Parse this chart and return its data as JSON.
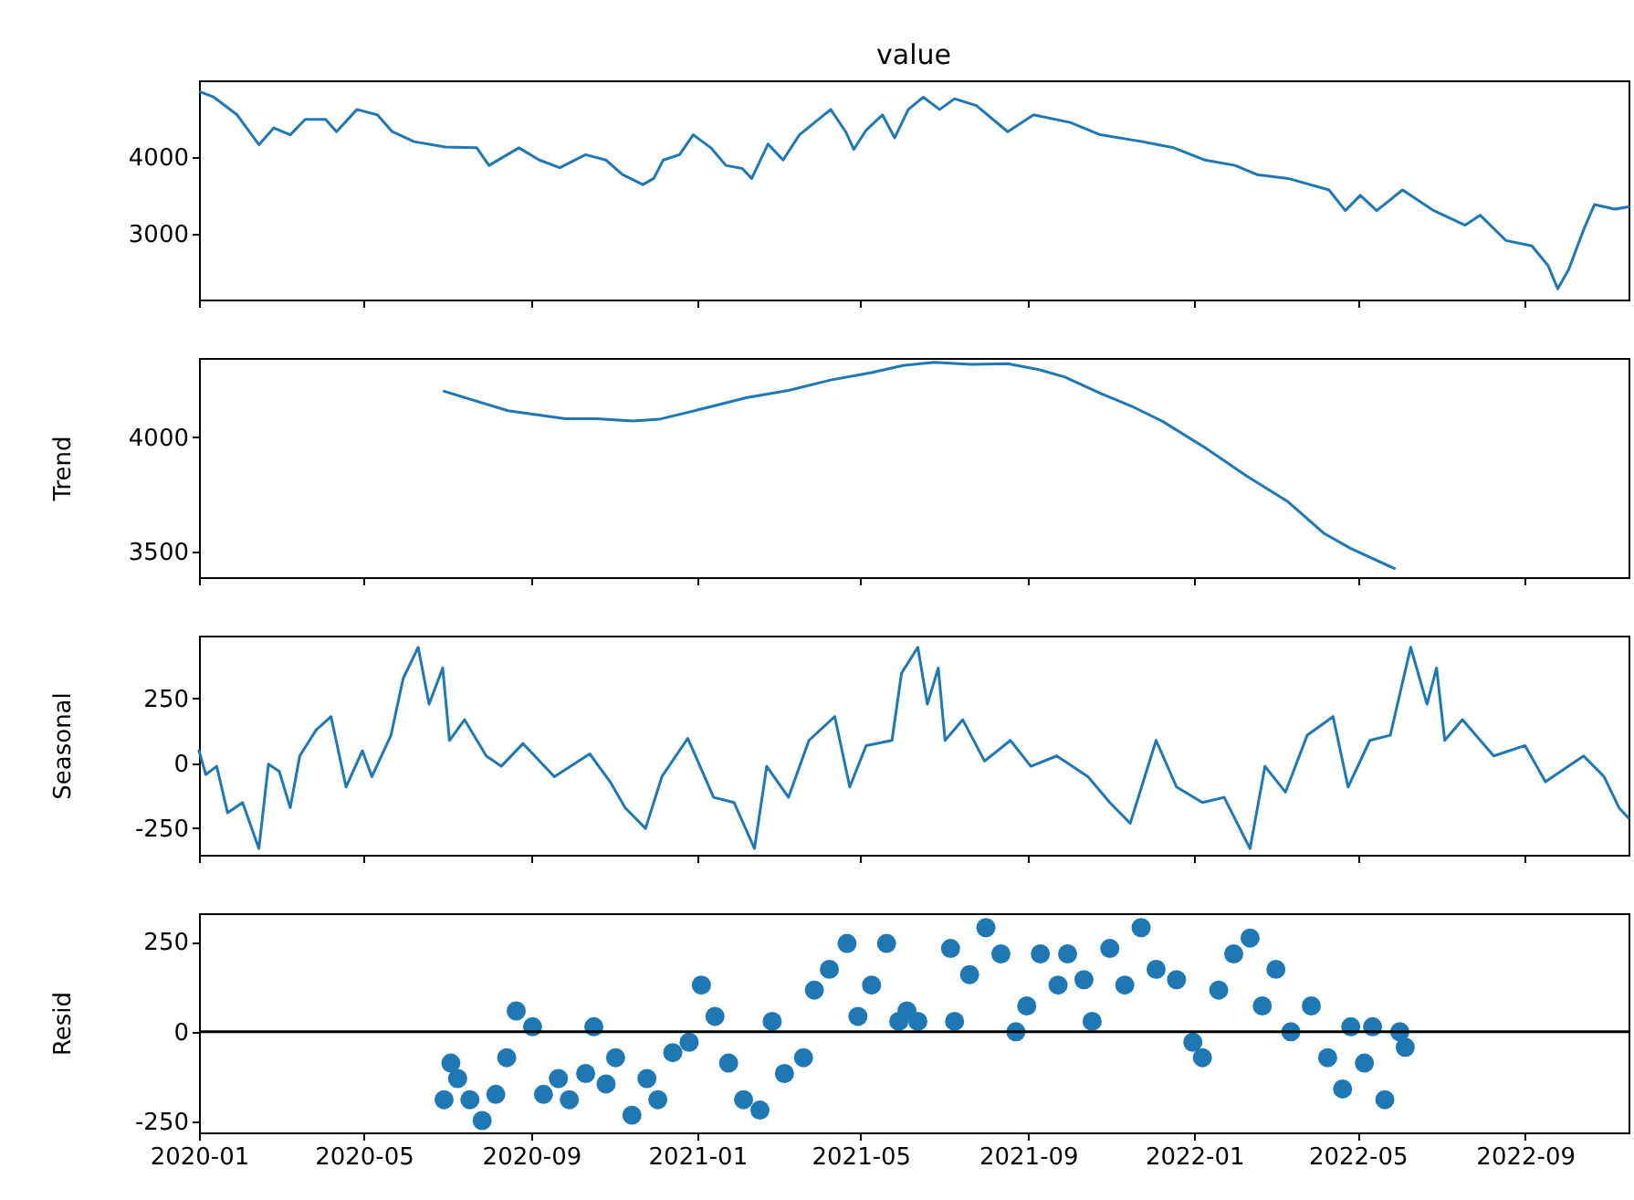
{
  "chart_data": [
    {
      "type": "line",
      "title": "value",
      "color": "#1f77b4",
      "tick_labels": "y",
      "xlim": [
        "2020-01-01",
        "2022-11-16"
      ],
      "xticks": [
        {
          "value": "2020-01-01",
          "label": null
        },
        {
          "value": "2020-05-01",
          "label": null
        },
        {
          "value": "2020-09-01",
          "label": null
        },
        {
          "value": "2021-01-01",
          "label": null
        },
        {
          "value": "2021-05-01",
          "label": null
        },
        {
          "value": "2021-09-01",
          "label": null
        },
        {
          "value": "2022-01-01",
          "label": null
        },
        {
          "value": "2022-05-01",
          "label": null
        },
        {
          "value": "2022-09-01",
          "label": null
        }
      ],
      "ylim": [
        2140,
        5000
      ],
      "yticks": [
        3000,
        4000
      ],
      "x": [
        "2020-01-02",
        "2020-01-12",
        "2020-01-29",
        "2020-02-14",
        "2020-02-25",
        "2020-03-08",
        "2020-03-19",
        "2020-04-03",
        "2020-04-11",
        "2020-04-26",
        "2020-05-11",
        "2020-05-22",
        "2020-06-07",
        "2020-06-30",
        "2020-07-23",
        "2020-08-01",
        "2020-08-23",
        "2020-09-07",
        "2020-09-22",
        "2020-10-11",
        "2020-10-26",
        "2020-11-07",
        "2020-11-22",
        "2020-11-30",
        "2020-12-07",
        "2020-12-19",
        "2020-12-29",
        "2021-01-11",
        "2021-01-22",
        "2021-02-03",
        "2021-02-10",
        "2021-02-22",
        "2021-03-05",
        "2021-03-17",
        "2021-04-09",
        "2021-04-20",
        "2021-04-26",
        "2021-05-05",
        "2021-05-17",
        "2021-05-26",
        "2021-06-05",
        "2021-06-16",
        "2021-06-28",
        "2021-07-09",
        "2021-07-25",
        "2021-08-17",
        "2021-09-05",
        "2021-10-02",
        "2021-10-24",
        "2021-11-24",
        "2021-12-17",
        "2022-01-09",
        "2022-01-31",
        "2022-02-16",
        "2022-03-11",
        "2022-04-10",
        "2022-04-22",
        "2022-05-03",
        "2022-05-15",
        "2022-06-03",
        "2022-06-26",
        "2022-07-19",
        "2022-07-30",
        "2022-08-18",
        "2022-09-06",
        "2022-09-18",
        "2022-09-25",
        "2022-10-03",
        "2022-10-14",
        "2022-10-22",
        "2022-11-06",
        "2022-11-16"
      ],
      "values": [
        4850,
        4780,
        4550,
        4160,
        4380,
        4290,
        4490,
        4490,
        4330,
        4620,
        4550,
        4330,
        4200,
        4130,
        4120,
        3890,
        4120,
        3960,
        3860,
        4030,
        3960,
        3770,
        3640,
        3720,
        3960,
        4030,
        4290,
        4120,
        3890,
        3850,
        3720,
        4170,
        3960,
        4290,
        4620,
        4330,
        4100,
        4350,
        4550,
        4250,
        4620,
        4780,
        4620,
        4760,
        4670,
        4330,
        4550,
        4450,
        4290,
        4200,
        4120,
        3960,
        3890,
        3770,
        3720,
        3570,
        3300,
        3500,
        3300,
        3570,
        3300,
        3110,
        3240,
        2910,
        2840,
        2580,
        2280,
        2530,
        3050,
        3380,
        3320,
        3350
      ]
    },
    {
      "type": "line",
      "ylabel": "Trend",
      "color": "#1f77b4",
      "tick_labels": "y",
      "xlim": [
        "2020-01-01",
        "2022-11-16"
      ],
      "xticks": [
        {
          "value": "2020-01-01",
          "label": null
        },
        {
          "value": "2020-05-01",
          "label": null
        },
        {
          "value": "2020-09-01",
          "label": null
        },
        {
          "value": "2021-01-01",
          "label": null
        },
        {
          "value": "2021-05-01",
          "label": null
        },
        {
          "value": "2021-09-01",
          "label": null
        },
        {
          "value": "2022-01-01",
          "label": null
        },
        {
          "value": "2022-05-01",
          "label": null
        },
        {
          "value": "2022-09-01",
          "label": null
        }
      ],
      "ylim": [
        3390,
        4345
      ],
      "yticks": [
        3500,
        4000
      ],
      "x": [
        "2020-06-29",
        "2020-08-15",
        "2020-09-26",
        "2020-10-19",
        "2020-11-15",
        "2020-12-04",
        "2021-01-07",
        "2021-02-06",
        "2021-03-09",
        "2021-04-09",
        "2021-05-09",
        "2021-06-01",
        "2021-06-24",
        "2021-07-21",
        "2021-08-17",
        "2021-09-09",
        "2021-09-28",
        "2021-10-24",
        "2021-11-16",
        "2021-12-09",
        "2022-01-09",
        "2022-02-08",
        "2022-03-11",
        "2022-04-06",
        "2022-04-26",
        "2022-05-28"
      ],
      "values": [
        4200,
        4115,
        4080,
        4080,
        4070,
        4078,
        4127,
        4172,
        4204,
        4249,
        4281,
        4312,
        4326,
        4317,
        4320,
        4294,
        4262,
        4191,
        4135,
        4068,
        3954,
        3833,
        3718,
        3582,
        3515,
        3428
      ]
    },
    {
      "type": "line",
      "ylabel": "Seasonal",
      "color": "#1f77b4",
      "tick_labels": "y",
      "xlim": [
        "2020-01-01",
        "2022-11-16"
      ],
      "xticks": [
        {
          "value": "2020-01-01",
          "label": null
        },
        {
          "value": "2020-05-01",
          "label": null
        },
        {
          "value": "2020-09-01",
          "label": null
        },
        {
          "value": "2021-01-01",
          "label": null
        },
        {
          "value": "2021-05-01",
          "label": null
        },
        {
          "value": "2021-09-01",
          "label": null
        },
        {
          "value": "2022-01-01",
          "label": null
        },
        {
          "value": "2022-05-01",
          "label": null
        },
        {
          "value": "2022-09-01",
          "label": null
        }
      ],
      "ylim": [
        -354,
        493
      ],
      "yticks": [
        -250,
        0,
        250
      ],
      "x": [
        "2020-01-01",
        "2020-01-06",
        "2020-01-14",
        "2020-01-22",
        "2020-02-02",
        "2020-02-14",
        "2020-02-21",
        "2020-02-29",
        "2020-03-08",
        "2020-03-15",
        "2020-03-27",
        "2020-04-07",
        "2020-04-18",
        "2020-04-30",
        "2020-05-07",
        "2020-05-21",
        "2020-05-30",
        "2020-06-10",
        "2020-06-18",
        "2020-06-28",
        "2020-07-03",
        "2020-07-14",
        "2020-07-30",
        "2020-08-10",
        "2020-08-26",
        "2020-09-18",
        "2020-10-14",
        "2020-10-29",
        "2020-11-09",
        "2020-11-24",
        "2020-12-06",
        "2020-12-25",
        "2021-01-13",
        "2021-01-28",
        "2021-02-12",
        "2021-02-21",
        "2021-03-09",
        "2021-03-24",
        "2021-04-12",
        "2021-04-23",
        "2021-05-05",
        "2021-05-24",
        "2021-05-31",
        "2021-06-12",
        "2021-06-19",
        "2021-06-27",
        "2021-07-02",
        "2021-07-15",
        "2021-07-31",
        "2021-08-19",
        "2021-09-03",
        "2021-09-22",
        "2021-10-15",
        "2021-10-31",
        "2021-11-15",
        "2021-12-04",
        "2021-12-19",
        "2022-01-07",
        "2022-01-23",
        "2022-02-11",
        "2022-02-22",
        "2022-03-09",
        "2022-03-25",
        "2022-04-13",
        "2022-04-24",
        "2022-05-10",
        "2022-05-25",
        "2022-06-09",
        "2022-06-21",
        "2022-06-28",
        "2022-07-04",
        "2022-07-17",
        "2022-08-09",
        "2022-09-01",
        "2022-09-16",
        "2022-10-14",
        "2022-10-29",
        "2022-11-09",
        "2022-11-16"
      ],
      "values": [
        48,
        -44,
        -12,
        -192,
        -152,
        -330,
        -4,
        -32,
        -172,
        28,
        128,
        180,
        -92,
        48,
        -52,
        108,
        328,
        448,
        228,
        368,
        88,
        168,
        28,
        -12,
        76,
        -52,
        36,
        -72,
        -172,
        -252,
        -52,
        96,
        -132,
        -152,
        -330,
        -12,
        -132,
        88,
        180,
        -92,
        68,
        88,
        348,
        448,
        228,
        368,
        88,
        168,
        8,
        88,
        -12,
        28,
        -52,
        -152,
        -232,
        88,
        -92,
        -152,
        -132,
        -330,
        -12,
        -112,
        108,
        180,
        -92,
        88,
        108,
        448,
        228,
        368,
        88,
        168,
        28,
        68,
        -72,
        28,
        -52,
        -172,
        -212
      ]
    },
    {
      "type": "scatter",
      "ylabel": "Resid",
      "color": "#1f77b4",
      "marker": "circle",
      "xlim": [
        "2020-01-01",
        "2022-11-16"
      ],
      "xticks": [
        {
          "value": "2020-01-01",
          "label": "2020-01"
        },
        {
          "value": "2020-05-01",
          "label": "2020-05"
        },
        {
          "value": "2020-09-01",
          "label": "2020-09"
        },
        {
          "value": "2021-01-01",
          "label": "2021-01"
        },
        {
          "value": "2021-05-01",
          "label": "2021-05"
        },
        {
          "value": "2021-09-01",
          "label": "2021-09"
        },
        {
          "value": "2022-01-01",
          "label": "2022-01"
        },
        {
          "value": "2022-05-01",
          "label": "2022-05"
        },
        {
          "value": "2022-09-01",
          "label": "2022-09"
        }
      ],
      "ylim": [
        -280,
        330
      ],
      "yticks": [
        -250,
        0,
        250
      ],
      "ref_lines": [
        {
          "axis": "y",
          "value": 0,
          "color": "#000000"
        }
      ],
      "x": [
        "2020-06-29",
        "2020-07-04",
        "2020-07-09",
        "2020-07-18",
        "2020-07-27",
        "2020-08-06",
        "2020-08-14",
        "2020-08-21",
        "2020-09-02",
        "2020-09-10",
        "2020-09-21",
        "2020-09-29",
        "2020-10-11",
        "2020-10-17",
        "2020-10-26",
        "2020-11-02",
        "2020-11-14",
        "2020-11-25",
        "2020-12-03",
        "2020-12-14",
        "2020-12-26",
        "2021-01-04",
        "2021-01-14",
        "2021-01-24",
        "2021-02-04",
        "2021-02-16",
        "2021-02-25",
        "2021-03-06",
        "2021-03-20",
        "2021-03-28",
        "2021-04-08",
        "2021-04-21",
        "2021-04-29",
        "2021-05-09",
        "2021-05-20",
        "2021-05-29",
        "2021-06-04",
        "2021-06-12",
        "2021-07-09",
        "2021-07-06",
        "2021-07-20",
        "2021-08-01",
        "2021-08-12",
        "2021-08-23",
        "2021-08-31",
        "2021-09-10",
        "2021-09-23",
        "2021-09-30",
        "2021-10-12",
        "2021-10-18",
        "2021-10-31",
        "2021-11-11",
        "2021-11-23",
        "2021-12-04",
        "2021-12-19",
        "2021-12-31",
        "2022-01-07",
        "2022-01-19",
        "2022-01-30",
        "2022-02-11",
        "2022-02-20",
        "2022-03-02",
        "2022-03-13",
        "2022-03-28",
        "2022-04-09",
        "2022-04-20",
        "2022-04-26",
        "2022-05-06",
        "2022-05-12",
        "2022-05-21",
        "2022-06-01",
        "2022-06-05"
      ],
      "values": [
        -189,
        -87,
        -130,
        -189,
        -247,
        -174,
        -72,
        58,
        14,
        -174,
        -130,
        -189,
        -116,
        14,
        -145,
        -72,
        -232,
        -130,
        -189,
        -58,
        -29,
        130,
        43,
        -87,
        -189,
        -218,
        29,
        -116,
        -72,
        116,
        174,
        246,
        43,
        130,
        246,
        29,
        58,
        29,
        29,
        232,
        159,
        290,
        217,
        0,
        72,
        217,
        130,
        217,
        145,
        29,
        232,
        130,
        290,
        174,
        145,
        -29,
        -72,
        116,
        217,
        261,
        72,
        174,
        0,
        72,
        -72,
        -159,
        14,
        -87,
        14,
        -189,
        0,
        -43
      ]
    }
  ]
}
